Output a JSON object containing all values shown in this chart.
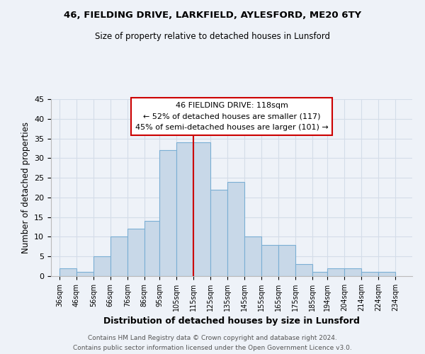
{
  "title": "46, FIELDING DRIVE, LARKFIELD, AYLESFORD, ME20 6TY",
  "subtitle": "Size of property relative to detached houses in Lunsford",
  "xlabel": "Distribution of detached houses by size in Lunsford",
  "ylabel": "Number of detached properties",
  "bar_left_edges": [
    36,
    46,
    56,
    66,
    76,
    86,
    95,
    105,
    115,
    125,
    135,
    145,
    155,
    165,
    175,
    185,
    194,
    204,
    214,
    224
  ],
  "bar_widths": [
    10,
    10,
    10,
    10,
    10,
    9,
    10,
    10,
    10,
    10,
    10,
    10,
    10,
    10,
    10,
    9,
    10,
    10,
    10,
    10
  ],
  "bar_heights": [
    2,
    1,
    5,
    10,
    12,
    14,
    32,
    34,
    34,
    22,
    24,
    10,
    8,
    8,
    3,
    1,
    2,
    2,
    1,
    1
  ],
  "bar_color": "#c8d8e8",
  "bar_edge_color": "#7bafd4",
  "highlight_x": 115,
  "highlight_color": "#cc0000",
  "ylim": [
    0,
    45
  ],
  "yticks": [
    0,
    5,
    10,
    15,
    20,
    25,
    30,
    35,
    40,
    45
  ],
  "x_tick_labels": [
    "36sqm",
    "46sqm",
    "56sqm",
    "66sqm",
    "76sqm",
    "86sqm",
    "95sqm",
    "105sqm",
    "115sqm",
    "125sqm",
    "135sqm",
    "145sqm",
    "155sqm",
    "165sqm",
    "175sqm",
    "185sqm",
    "194sqm",
    "204sqm",
    "214sqm",
    "224sqm",
    "234sqm"
  ],
  "x_tick_positions": [
    36,
    46,
    56,
    66,
    76,
    86,
    95,
    105,
    115,
    125,
    135,
    145,
    155,
    165,
    175,
    185,
    194,
    204,
    214,
    224,
    234
  ],
  "annotation_title": "46 FIELDING DRIVE: 118sqm",
  "annotation_line1": "← 52% of detached houses are smaller (117)",
  "annotation_line2": "45% of semi-detached houses are larger (101) →",
  "annotation_box_color": "#ffffff",
  "annotation_box_edge": "#cc0000",
  "footer_line1": "Contains HM Land Registry data © Crown copyright and database right 2024.",
  "footer_line2": "Contains public sector information licensed under the Open Government Licence v3.0.",
  "grid_color": "#d4dde8",
  "background_color": "#eef2f8"
}
